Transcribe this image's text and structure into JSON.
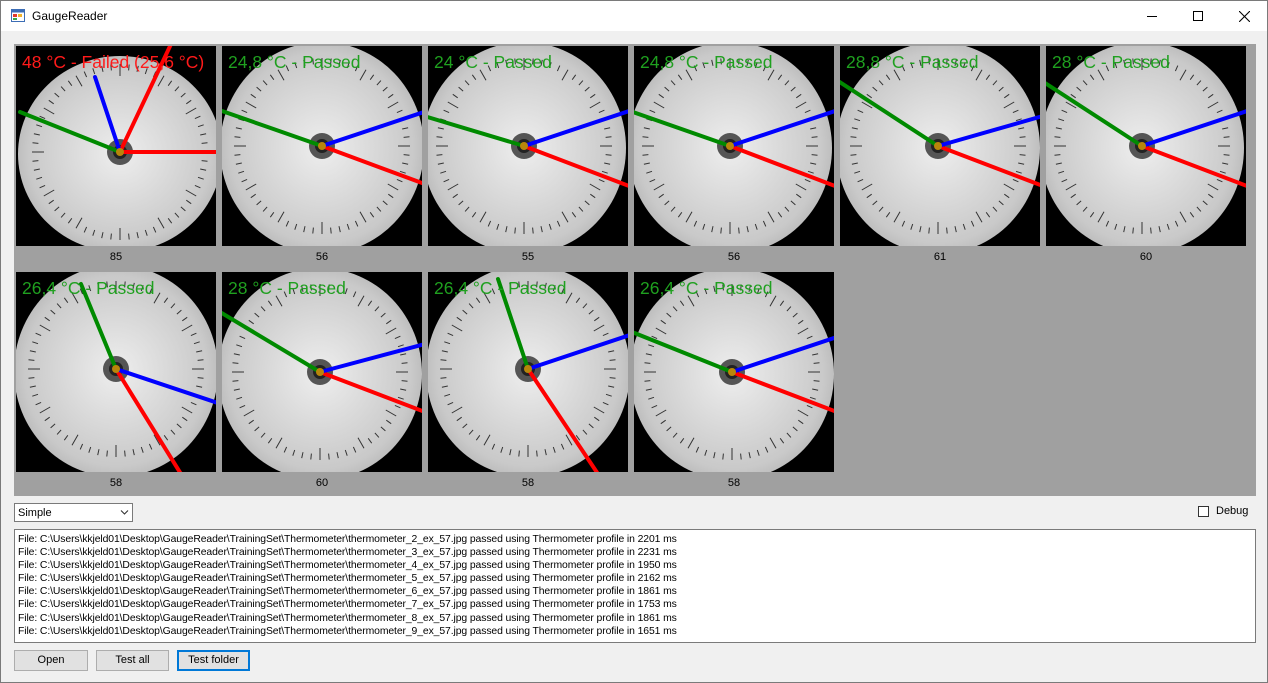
{
  "window": {
    "title": "GaugeReader",
    "icon": "app-window-icon"
  },
  "colors": {
    "fail": "#ff1a1a",
    "pass": "#1fa01f",
    "needle_red": "#ff0000",
    "needle_green": "#008a00",
    "needle_blue": "#0000ff",
    "panel": "#a0a0a0",
    "focus": "#0078d7"
  },
  "gauges": [
    {
      "label": "48 °C - Failed (25,6 °C)",
      "status": "failed",
      "caption": "85"
    },
    {
      "label": "24,8 °C - Passed",
      "status": "passed",
      "caption": "56"
    },
    {
      "label": "24 °C - Passed",
      "status": "passed",
      "caption": "55"
    },
    {
      "label": "24,8 °C - Passed",
      "status": "passed",
      "caption": "56"
    },
    {
      "label": "28,8 °C - Passed",
      "status": "passed",
      "caption": "61"
    },
    {
      "label": "28 °C - Passed",
      "status": "passed",
      "caption": "60"
    },
    {
      "label": "26,4 °C - Passed",
      "status": "passed",
      "caption": "58"
    },
    {
      "label": "28 °C - Passed",
      "status": "passed",
      "caption": "60"
    },
    {
      "label": "26,4 °C - Passed",
      "status": "passed",
      "caption": "58"
    },
    {
      "label": "26,4 °C - Passed",
      "status": "passed",
      "caption": "58"
    }
  ],
  "mode_select": {
    "value": "Simple"
  },
  "debug": {
    "label": "Debug",
    "checked": false
  },
  "log_lines": [
    "File: C:\\Users\\kkjeld01\\Desktop\\GaugeReader\\TrainingSet\\Thermometer\\thermometer_2_ex_57.jpg passed using Thermometer profile in 2201 ms",
    "File: C:\\Users\\kkjeld01\\Desktop\\GaugeReader\\TrainingSet\\Thermometer\\thermometer_3_ex_57.jpg passed using Thermometer profile in 2231 ms",
    "File: C:\\Users\\kkjeld01\\Desktop\\GaugeReader\\TrainingSet\\Thermometer\\thermometer_4_ex_57.jpg passed using Thermometer profile in 1950 ms",
    "File: C:\\Users\\kkjeld01\\Desktop\\GaugeReader\\TrainingSet\\Thermometer\\thermometer_5_ex_57.jpg passed using Thermometer profile in 2162 ms",
    "File: C:\\Users\\kkjeld01\\Desktop\\GaugeReader\\TrainingSet\\Thermometer\\thermometer_6_ex_57.jpg passed using Thermometer profile in 1861 ms",
    "File: C:\\Users\\kkjeld01\\Desktop\\GaugeReader\\TrainingSet\\Thermometer\\thermometer_7_ex_57.jpg passed using Thermometer profile in 1753 ms",
    "File: C:\\Users\\kkjeld01\\Desktop\\GaugeReader\\TrainingSet\\Thermometer\\thermometer_8_ex_57.jpg passed using Thermometer profile in 1861 ms",
    "File: C:\\Users\\kkjeld01\\Desktop\\GaugeReader\\TrainingSet\\Thermometer\\thermometer_9_ex_57.jpg passed using Thermometer profile in 1651 ms"
  ],
  "buttons": {
    "open": "Open",
    "test_all": "Test all",
    "test_folder": "Test folder"
  }
}
